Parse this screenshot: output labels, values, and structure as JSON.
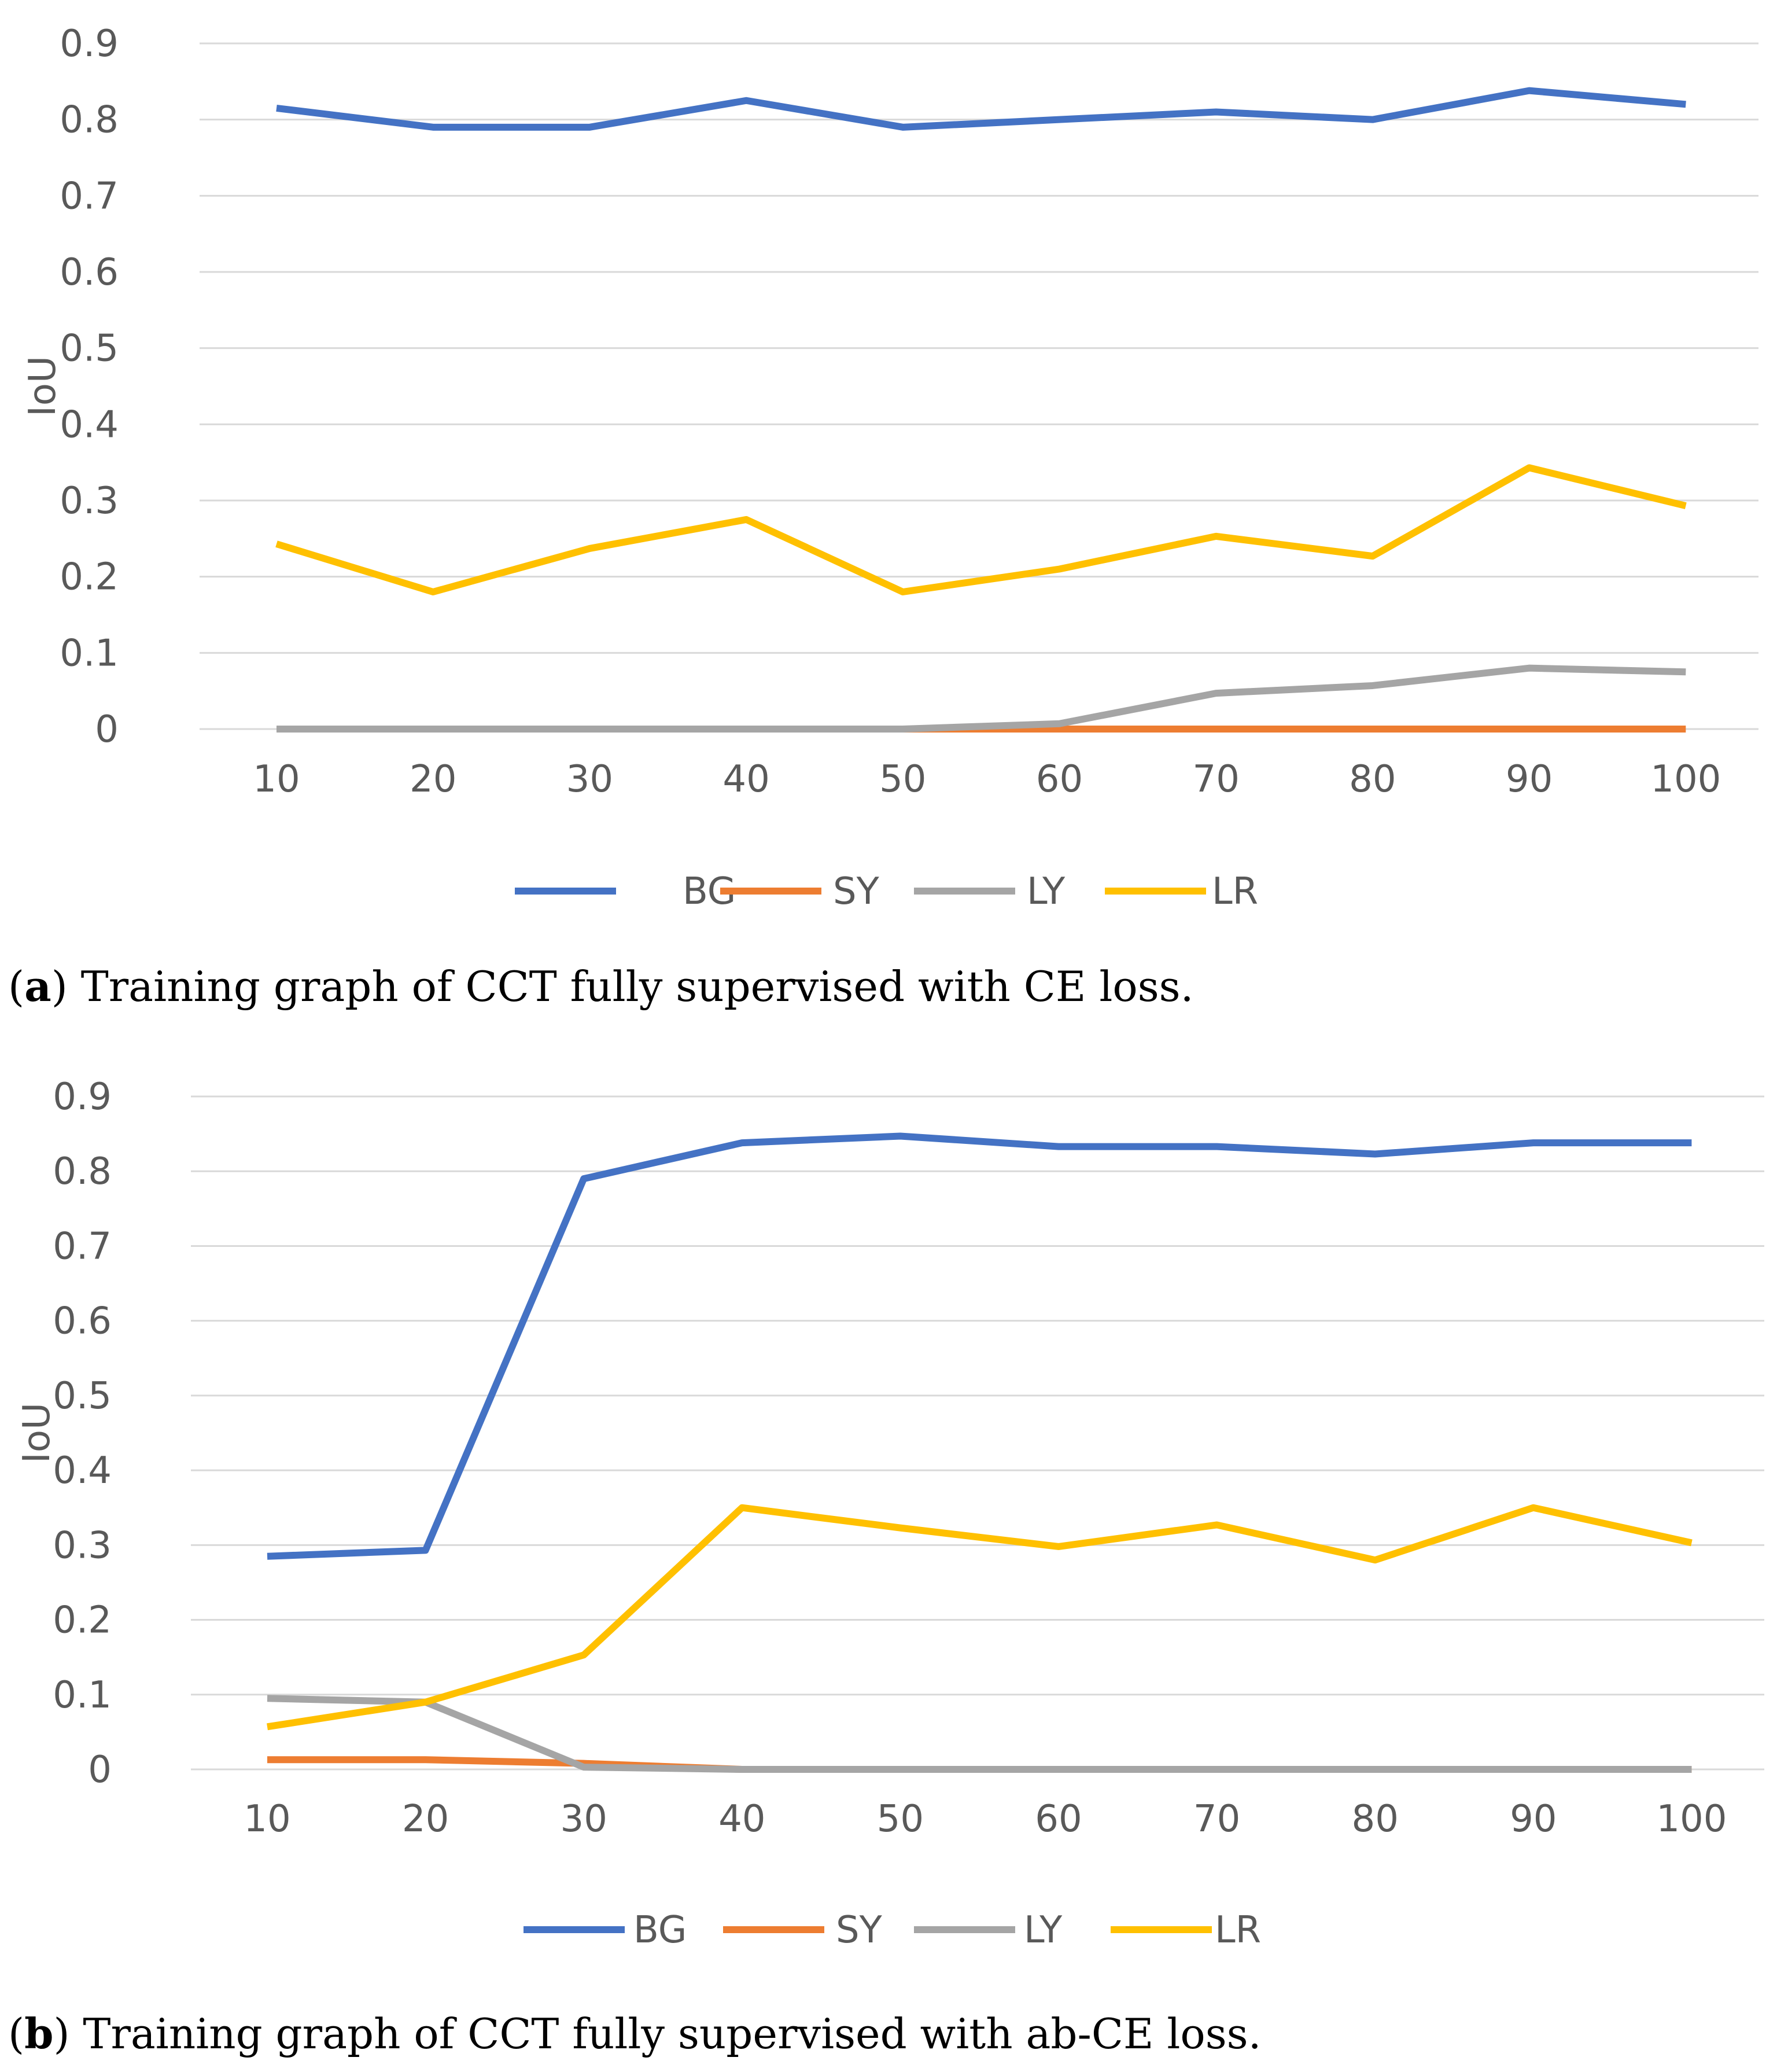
{
  "chart_data": [
    {
      "type": "line",
      "panel": "a",
      "x": [
        10,
        20,
        30,
        40,
        50,
        60,
        70,
        80,
        90,
        100
      ],
      "ylabel": "IoU",
      "xlabel": "",
      "ylim": [
        0,
        0.9
      ],
      "yticks": [
        "0",
        "0.1",
        "0.2",
        "0.3",
        "0.4",
        "0.5",
        "0.6",
        "0.7",
        "0.8",
        "0.9"
      ],
      "xticks": [
        "10",
        "20",
        "30",
        "40",
        "50",
        "60",
        "70",
        "80",
        "90",
        "100"
      ],
      "grid": true,
      "legend_position": "bottom",
      "series": [
        {
          "name": "BG",
          "color": "#4472C4",
          "values": [
            0.815,
            0.79,
            0.79,
            0.825,
            0.79,
            0.8,
            0.81,
            0.8,
            0.838,
            0.82
          ]
        },
        {
          "name": "SY",
          "color": "#ED7D31",
          "values": [
            0,
            0,
            0,
            0,
            0,
            0,
            0,
            0,
            0,
            0
          ]
        },
        {
          "name": "LY",
          "color": "#A5A5A5",
          "values": [
            0,
            0,
            0,
            0,
            0,
            0.007,
            0.047,
            0.057,
            0.08,
            0.075
          ]
        },
        {
          "name": "LR",
          "color": "#FFC000",
          "values": [
            0.243,
            0.18,
            0.237,
            0.275,
            0.18,
            0.21,
            0.253,
            0.227,
            0.343,
            0.293
          ]
        }
      ]
    },
    {
      "type": "line",
      "panel": "b",
      "x": [
        10,
        20,
        30,
        40,
        50,
        60,
        70,
        80,
        90,
        100
      ],
      "ylabel": "IoU",
      "xlabel": "",
      "ylim": [
        0,
        0.9
      ],
      "yticks": [
        "0",
        "0.1",
        "0.2",
        "0.3",
        "0.4",
        "0.5",
        "0.6",
        "0.7",
        "0.8",
        "0.9"
      ],
      "xticks": [
        "10",
        "20",
        "30",
        "40",
        "50",
        "60",
        "70",
        "80",
        "90",
        "100"
      ],
      "grid": true,
      "legend_position": "bottom",
      "series": [
        {
          "name": "BG",
          "color": "#4472C4",
          "values": [
            0.285,
            0.293,
            0.79,
            0.838,
            0.847,
            0.833,
            0.833,
            0.823,
            0.838,
            0.838
          ]
        },
        {
          "name": "SY",
          "color": "#ED7D31",
          "values": [
            0.013,
            0.013,
            0.008,
            0,
            0,
            0,
            0,
            0,
            0,
            0
          ]
        },
        {
          "name": "LY",
          "color": "#A5A5A5",
          "values": [
            0.095,
            0.09,
            0.003,
            0,
            0,
            0,
            0,
            0,
            0,
            0
          ]
        },
        {
          "name": "LR",
          "color": "#FFC000",
          "values": [
            0.057,
            0.09,
            0.153,
            0.35,
            0.323,
            0.298,
            0.327,
            0.28,
            0.35,
            0.303
          ]
        }
      ]
    }
  ],
  "captions": {
    "a": {
      "tag": "a",
      "text": " Training graph of CCT fully supervised with CE loss."
    },
    "b": {
      "tag": "b",
      "text": " Training graph of CCT fully supervised with ab-CE loss."
    }
  }
}
